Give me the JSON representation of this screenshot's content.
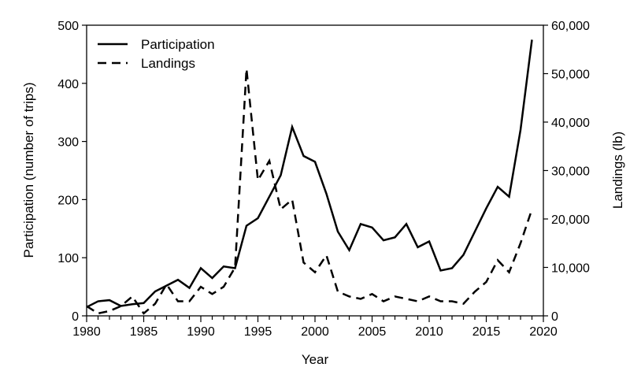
{
  "chart_data": {
    "type": "line",
    "title": "",
    "xlabel": "Year",
    "ylabel": "Participation (number of trips)",
    "y2label": "Landings (lb)",
    "xlim": [
      1980,
      2020
    ],
    "ylim": [
      0,
      500
    ],
    "y2lim": [
      0,
      60000
    ],
    "xticks": [
      "1980",
      "1985",
      "1990",
      "1995",
      "2000",
      "2005",
      "2010",
      "2015",
      "2020"
    ],
    "yticks": [
      "0",
      "100",
      "200",
      "300",
      "400",
      "500"
    ],
    "y2ticks": [
      "0",
      "10,000",
      "20,000",
      "30,000",
      "40,000",
      "50,000",
      "60,000"
    ],
    "grid": false,
    "legend_position": "top-left",
    "x": [
      1980,
      1981,
      1982,
      1983,
      1984,
      1985,
      1986,
      1987,
      1988,
      1989,
      1990,
      1991,
      1992,
      1993,
      1994,
      1995,
      1996,
      1997,
      1998,
      1999,
      2000,
      2001,
      2002,
      2003,
      2004,
      2005,
      2006,
      2007,
      2008,
      2009,
      2010,
      2011,
      2012,
      2013,
      2014,
      2015,
      2016,
      2017,
      2018,
      2019
    ],
    "series": [
      {
        "name": "Participation",
        "axis": "left",
        "style": "solid",
        "color": "#000000",
        "values": [
          15,
          25,
          27,
          17,
          20,
          22,
          42,
          52,
          62,
          48,
          82,
          65,
          85,
          82,
          155,
          168,
          205,
          242,
          325,
          275,
          265,
          210,
          145,
          113,
          158,
          152,
          130,
          135,
          158,
          118,
          128,
          78,
          82,
          105,
          145,
          185,
          222,
          205,
          320,
          475
        ]
      },
      {
        "name": "Landings",
        "axis": "right",
        "style": "dashed",
        "color": "#000000",
        "values": [
          2000,
          500,
          1000,
          2000,
          4000,
          500,
          2500,
          6500,
          3000,
          3000,
          6000,
          4500,
          6000,
          10000,
          51000,
          28000,
          32000,
          22000,
          24000,
          11000,
          9000,
          12500,
          5000,
          4000,
          3500,
          4500,
          3000,
          4000,
          3500,
          3000,
          4000,
          3000,
          3000,
          2500,
          5000,
          7000,
          11500,
          9000,
          15000,
          22000
        ]
      }
    ]
  }
}
